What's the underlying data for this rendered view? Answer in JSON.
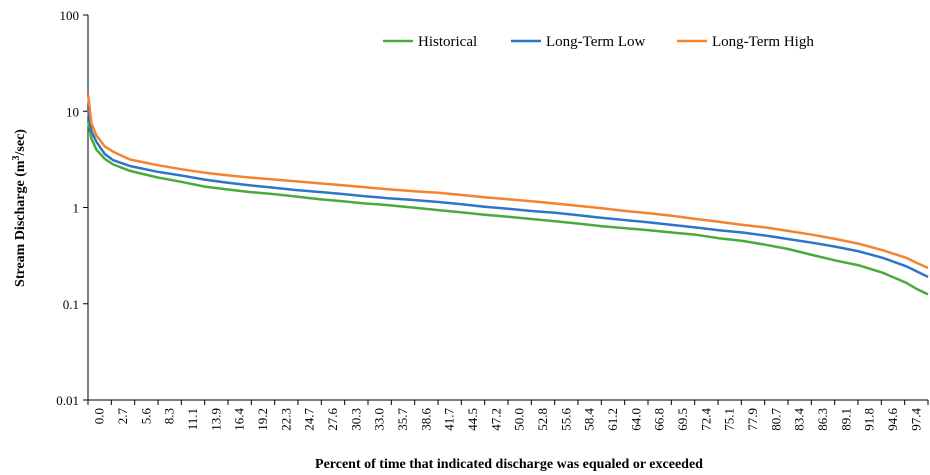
{
  "chart_data": {
    "type": "line",
    "xlabel": "Percent of time that indicated discharge was equaled or exceeded",
    "ylabel_main": "Stream Discharge (m",
    "ylabel_sup": "3",
    "ylabel_tail": "/sec)",
    "yscale": "log",
    "ylim": [
      0.01,
      100
    ],
    "xlim": [
      0.0,
      100.0
    ],
    "y_ticks": [
      {
        "value": 100,
        "label": "100"
      },
      {
        "value": 10,
        "label": "10"
      },
      {
        "value": 1,
        "label": "1"
      },
      {
        "value": 0.1,
        "label": "0.1"
      },
      {
        "value": 0.01,
        "label": "0.01"
      }
    ],
    "x_ticks": [
      "0.0",
      "2.7",
      "5.6",
      "8.3",
      "11.1",
      "13.9",
      "16.4",
      "19.2",
      "22.3",
      "24.7",
      "27.6",
      "30.3",
      "33.0",
      "35.7",
      "38.6",
      "41.7",
      "44.5",
      "47.2",
      "50.0",
      "52.8",
      "55.6",
      "58.4",
      "61.2",
      "64.0",
      "66.8",
      "69.5",
      "72.4",
      "75.1",
      "77.9",
      "80.7",
      "83.4",
      "86.3",
      "89.1",
      "91.8",
      "94.6",
      "97.4"
    ],
    "grid": false,
    "legend_position": "top-right",
    "series": [
      {
        "name": "Historical",
        "color": "#4aaa3c",
        "points": [
          [
            0,
            8
          ],
          [
            0.4,
            5.2
          ],
          [
            1,
            4
          ],
          [
            2,
            3.2
          ],
          [
            3,
            2.8
          ],
          [
            5,
            2.4
          ],
          [
            8.3,
            2.05
          ],
          [
            11.1,
            1.85
          ],
          [
            13.9,
            1.65
          ],
          [
            16.4,
            1.55
          ],
          [
            19.2,
            1.45
          ],
          [
            22.3,
            1.37
          ],
          [
            24.7,
            1.3
          ],
          [
            27.6,
            1.22
          ],
          [
            30.3,
            1.16
          ],
          [
            33,
            1.1
          ],
          [
            35.7,
            1.06
          ],
          [
            38.6,
            1.0
          ],
          [
            41.7,
            0.94
          ],
          [
            44.5,
            0.89
          ],
          [
            47.2,
            0.84
          ],
          [
            50,
            0.8
          ],
          [
            52.8,
            0.76
          ],
          [
            55.6,
            0.72
          ],
          [
            58.4,
            0.68
          ],
          [
            61.2,
            0.64
          ],
          [
            64,
            0.61
          ],
          [
            66.8,
            0.58
          ],
          [
            69.5,
            0.55
          ],
          [
            72.4,
            0.52
          ],
          [
            75.1,
            0.48
          ],
          [
            77.9,
            0.45
          ],
          [
            80.7,
            0.41
          ],
          [
            83.4,
            0.37
          ],
          [
            86.3,
            0.32
          ],
          [
            89.1,
            0.28
          ],
          [
            91.8,
            0.25
          ],
          [
            94.6,
            0.21
          ],
          [
            97.4,
            0.165
          ],
          [
            98.5,
            0.145
          ],
          [
            100,
            0.125
          ]
        ]
      },
      {
        "name": "Long-Term Low",
        "color": "#2f75c7",
        "points": [
          [
            0,
            10.5
          ],
          [
            0.4,
            6.2
          ],
          [
            1,
            4.8
          ],
          [
            2,
            3.6
          ],
          [
            3,
            3.1
          ],
          [
            5,
            2.7
          ],
          [
            8.3,
            2.35
          ],
          [
            11.1,
            2.15
          ],
          [
            13.9,
            1.95
          ],
          [
            16.4,
            1.82
          ],
          [
            19.2,
            1.7
          ],
          [
            22.3,
            1.6
          ],
          [
            24.7,
            1.52
          ],
          [
            27.6,
            1.45
          ],
          [
            30.3,
            1.38
          ],
          [
            33,
            1.31
          ],
          [
            35.7,
            1.25
          ],
          [
            38.6,
            1.2
          ],
          [
            41.7,
            1.14
          ],
          [
            44.5,
            1.08
          ],
          [
            47.2,
            1.02
          ],
          [
            50,
            0.97
          ],
          [
            52.8,
            0.92
          ],
          [
            55.6,
            0.88
          ],
          [
            58.4,
            0.83
          ],
          [
            61.2,
            0.78
          ],
          [
            64,
            0.74
          ],
          [
            66.8,
            0.7
          ],
          [
            69.5,
            0.66
          ],
          [
            72.4,
            0.62
          ],
          [
            75.1,
            0.58
          ],
          [
            77.9,
            0.55
          ],
          [
            80.7,
            0.51
          ],
          [
            83.4,
            0.47
          ],
          [
            86.3,
            0.43
          ],
          [
            89.1,
            0.39
          ],
          [
            91.8,
            0.35
          ],
          [
            94.6,
            0.3
          ],
          [
            97.4,
            0.245
          ],
          [
            98.5,
            0.22
          ],
          [
            100,
            0.19
          ]
        ]
      },
      {
        "name": "Long-Term High",
        "color": "#f58231",
        "points": [
          [
            0,
            15
          ],
          [
            0.4,
            7.5
          ],
          [
            1,
            5.6
          ],
          [
            2,
            4.3
          ],
          [
            3,
            3.8
          ],
          [
            5,
            3.15
          ],
          [
            8.3,
            2.75
          ],
          [
            11.1,
            2.5
          ],
          [
            13.9,
            2.3
          ],
          [
            16.4,
            2.17
          ],
          [
            19.2,
            2.05
          ],
          [
            22.3,
            1.95
          ],
          [
            24.7,
            1.87
          ],
          [
            27.6,
            1.78
          ],
          [
            30.3,
            1.7
          ],
          [
            33,
            1.62
          ],
          [
            35.7,
            1.55
          ],
          [
            38.6,
            1.48
          ],
          [
            41.7,
            1.42
          ],
          [
            44.5,
            1.35
          ],
          [
            47.2,
            1.28
          ],
          [
            50,
            1.22
          ],
          [
            52.8,
            1.16
          ],
          [
            55.6,
            1.1
          ],
          [
            58.4,
            1.04
          ],
          [
            61.2,
            0.98
          ],
          [
            64,
            0.92
          ],
          [
            66.8,
            0.87
          ],
          [
            69.5,
            0.82
          ],
          [
            72.4,
            0.76
          ],
          [
            75.1,
            0.71
          ],
          [
            77.9,
            0.66
          ],
          [
            80.7,
            0.62
          ],
          [
            83.4,
            0.57
          ],
          [
            86.3,
            0.52
          ],
          [
            89.1,
            0.47
          ],
          [
            91.8,
            0.42
          ],
          [
            94.6,
            0.36
          ],
          [
            97.4,
            0.3
          ],
          [
            98.5,
            0.27
          ],
          [
            100,
            0.235
          ]
        ]
      }
    ]
  }
}
